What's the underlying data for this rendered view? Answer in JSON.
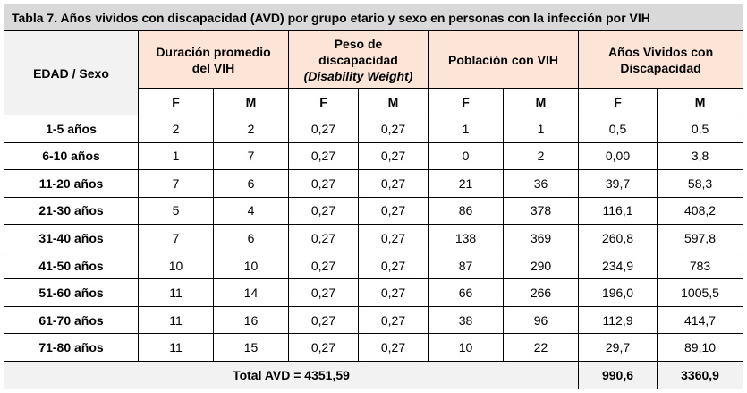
{
  "title": "Tabla 7. Años vividos con discapacidad (AVD) por grupo etario y sexo en personas con la infección por VIH",
  "header": {
    "edad_sexo": "EDAD / Sexo",
    "duracion_line1": "Duración promedio",
    "duracion_line2": "del VIH",
    "peso_line1": "Peso de",
    "peso_line2": "discapacidad",
    "peso_line3": "(Disability Weight)",
    "poblacion": "Población con VIH",
    "avd_line1": "Años Vividos con",
    "avd_line2": "Discapacidad",
    "f": "F",
    "m": "M"
  },
  "rows": [
    {
      "age": "1-5 años",
      "dur_f": "2",
      "dur_m": "2",
      "peso_f": "0,27",
      "peso_m": "0,27",
      "pob_f": "1",
      "pob_m": "1",
      "avd_f": "0,5",
      "avd_m": "0,5"
    },
    {
      "age": "6-10 años",
      "dur_f": "1",
      "dur_m": "7",
      "peso_f": "0,27",
      "peso_m": "0,27",
      "pob_f": "0",
      "pob_m": "2",
      "avd_f": "0,00",
      "avd_m": "3,8"
    },
    {
      "age": "11-20 años",
      "dur_f": "7",
      "dur_m": "6",
      "peso_f": "0,27",
      "peso_m": "0,27",
      "pob_f": "21",
      "pob_m": "36",
      "avd_f": "39,7",
      "avd_m": "58,3"
    },
    {
      "age": "21-30 años",
      "dur_f": "5",
      "dur_m": "4",
      "peso_f": "0,27",
      "peso_m": "0,27",
      "pob_f": "86",
      "pob_m": "378",
      "avd_f": "116,1",
      "avd_m": "408,2"
    },
    {
      "age": "31-40 años",
      "dur_f": "7",
      "dur_m": "6",
      "peso_f": "0,27",
      "peso_m": "0,27",
      "pob_f": "138",
      "pob_m": "369",
      "avd_f": "260,8",
      "avd_m": "597,8"
    },
    {
      "age": "41-50 años",
      "dur_f": "10",
      "dur_m": "10",
      "peso_f": "0,27",
      "peso_m": "0,27",
      "pob_f": "87",
      "pob_m": "290",
      "avd_f": "234,9",
      "avd_m": "783"
    },
    {
      "age": "51-60 años",
      "dur_f": "11",
      "dur_m": "14",
      "peso_f": "0,27",
      "peso_m": "0,27",
      "pob_f": "66",
      "pob_m": "266",
      "avd_f": "196,0",
      "avd_m": "1005,5"
    },
    {
      "age": "61-70 años",
      "dur_f": "11",
      "dur_m": "16",
      "peso_f": "0,27",
      "peso_m": "0,27",
      "pob_f": "38",
      "pob_m": "96",
      "avd_f": "112,9",
      "avd_m": "414,7"
    },
    {
      "age": "71-80 años",
      "dur_f": "11",
      "dur_m": "15",
      "peso_f": "0,27",
      "peso_m": "0,27",
      "pob_f": "10",
      "pob_m": "22",
      "avd_f": "29,7",
      "avd_m": "89,10"
    }
  ],
  "total": {
    "label": "Total AVD = 4351,59",
    "avd_f": "990,6",
    "avd_m": "3360,9"
  }
}
